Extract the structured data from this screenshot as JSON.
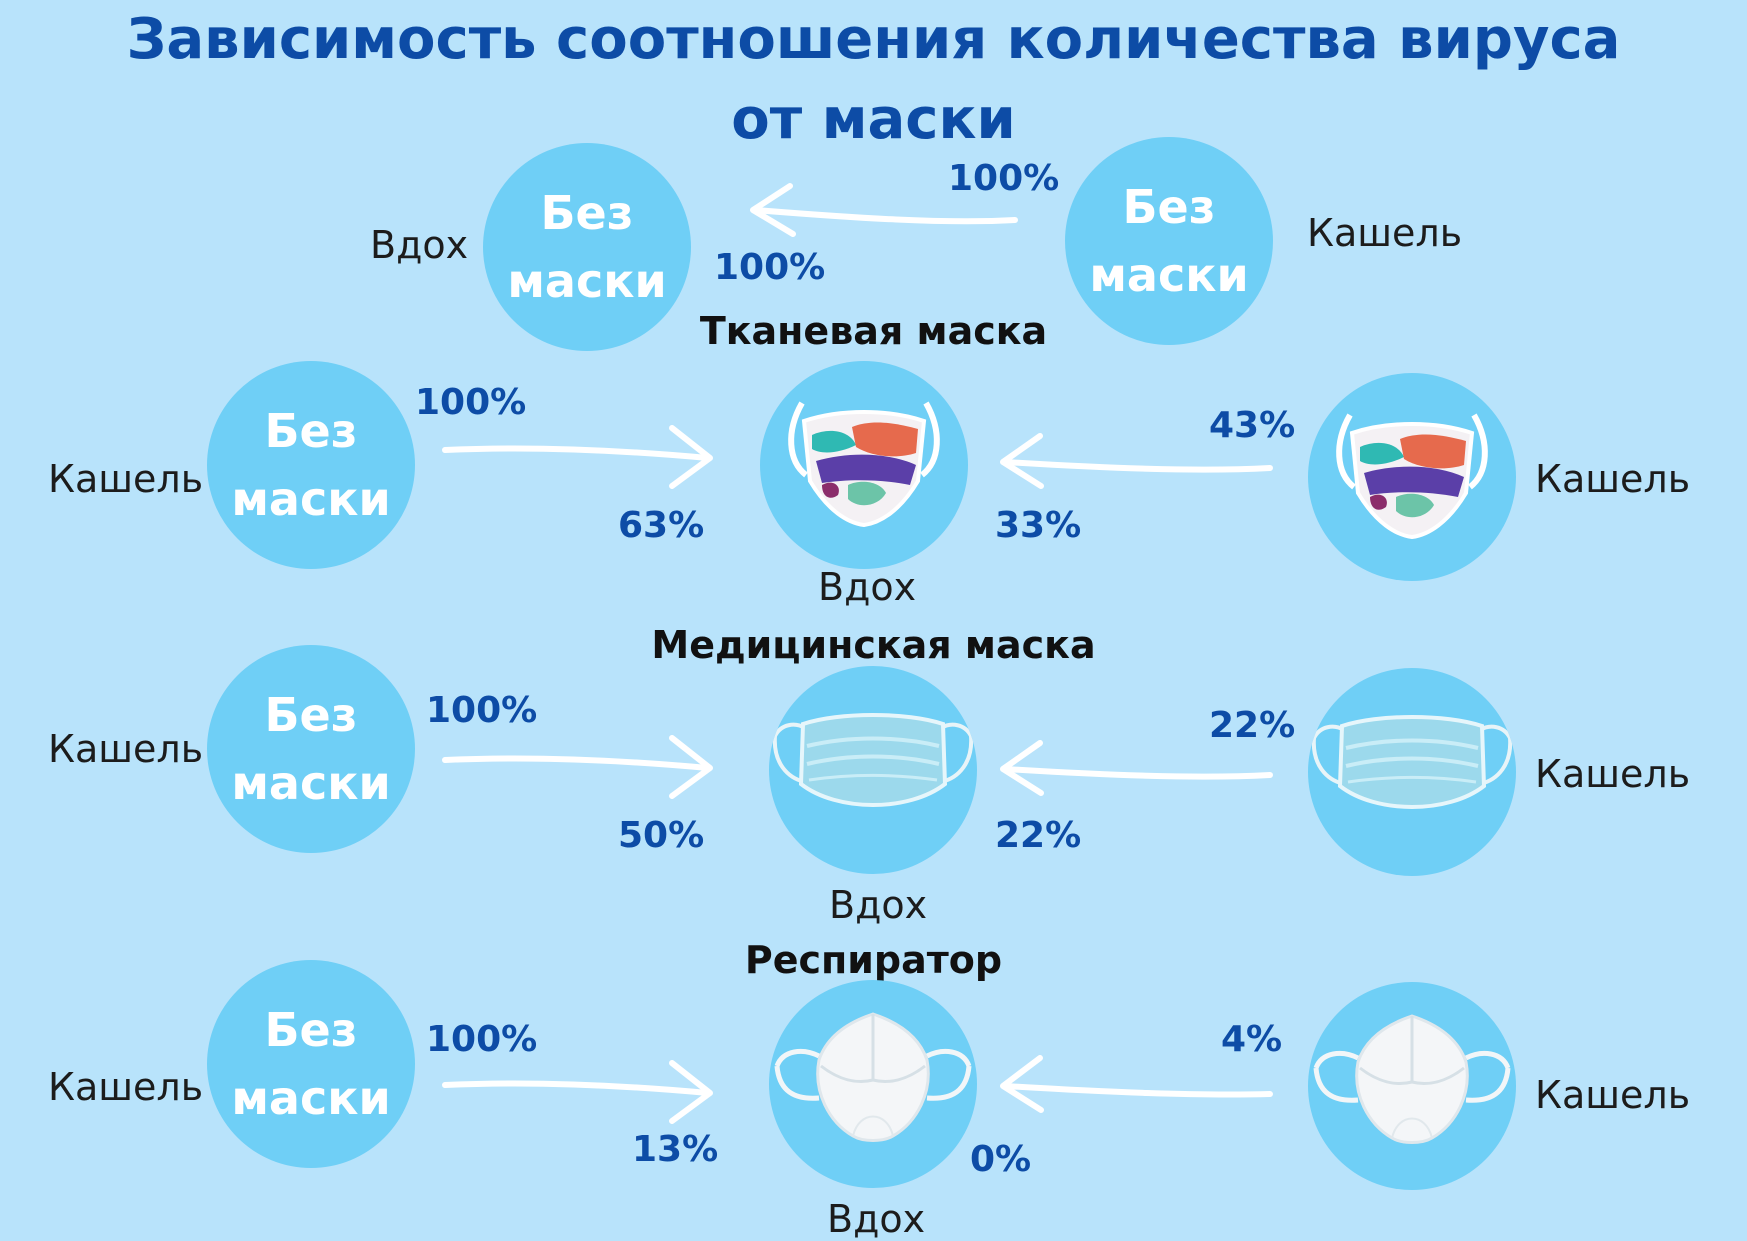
{
  "title": {
    "line1": "Зависимость соотношения количества вируса",
    "line2": "от маски"
  },
  "no_mask": {
    "line1": "Без",
    "line2": "маски"
  },
  "labels": {
    "inhale": "Вдох",
    "cough": "Кашель"
  },
  "rows": {
    "none": {
      "heading": "",
      "source_pct": "100%",
      "inhale_pct": "100%"
    },
    "cloth": {
      "heading": "Тканевая маска",
      "source_pct": "100%",
      "inhale_pct": "63%",
      "cough_pct": "43%",
      "to_inhale_pct": "33%"
    },
    "medical": {
      "heading": "Медицинская маска",
      "source_pct": "100%",
      "inhale_pct": "50%",
      "cough_pct": "22%",
      "to_inhale_pct": "22%"
    },
    "respirator": {
      "heading": "Респиратор",
      "source_pct": "100%",
      "inhale_pct": "13%",
      "cough_pct": "4%",
      "to_inhale_pct": "0%"
    }
  },
  "colors": {
    "background": "#b8e3fb",
    "circle": "#6fcff6",
    "accent": "#0d4ca6"
  }
}
